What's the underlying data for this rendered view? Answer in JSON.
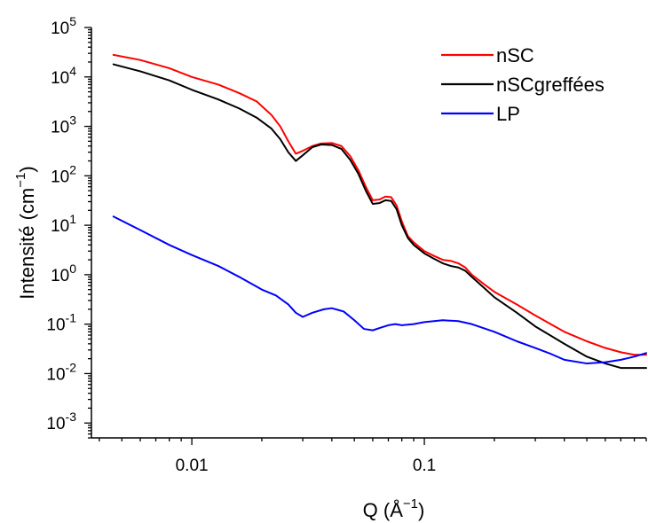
{
  "chart_data": {
    "type": "line",
    "x_scale": "log",
    "y_scale": "log",
    "xlim": [
      0.0037,
      0.9
    ],
    "ylim": [
      0.0005,
      100000
    ],
    "x_ticks": [
      {
        "value": 0.01,
        "label": "0.01"
      },
      {
        "value": 0.1,
        "label": "0.1"
      }
    ],
    "y_ticks": [
      {
        "value": 0.001,
        "base": "10",
        "exp": "-3"
      },
      {
        "value": 0.01,
        "base": "10",
        "exp": "-2"
      },
      {
        "value": 0.1,
        "base": "10",
        "exp": "-1"
      },
      {
        "value": 1,
        "base": "10",
        "exp": "0"
      },
      {
        "value": 10,
        "base": "10",
        "exp": "1"
      },
      {
        "value": 100,
        "base": "10",
        "exp": "2"
      },
      {
        "value": 1000,
        "base": "10",
        "exp": "3"
      },
      {
        "value": 10000,
        "base": "10",
        "exp": "4"
      },
      {
        "value": 100000,
        "base": "10",
        "exp": "5"
      }
    ],
    "xlabel": {
      "main": "Q (Å",
      "sup": "−1",
      "end": ")"
    },
    "ylabel": {
      "main": "Intensité (cm",
      "sup": "−1",
      "end": ")"
    },
    "legend_position": "top-right",
    "series": [
      {
        "name": "nSC",
        "color": "#ff0000",
        "x": [
          0.0046,
          0.006,
          0.008,
          0.01,
          0.013,
          0.016,
          0.019,
          0.022,
          0.024,
          0.026,
          0.028,
          0.03,
          0.033,
          0.036,
          0.04,
          0.044,
          0.048,
          0.052,
          0.056,
          0.06,
          0.064,
          0.068,
          0.072,
          0.076,
          0.08,
          0.085,
          0.09,
          0.1,
          0.11,
          0.12,
          0.13,
          0.14,
          0.15,
          0.16,
          0.18,
          0.2,
          0.25,
          0.3,
          0.4,
          0.5,
          0.6,
          0.7,
          0.8,
          0.9
        ],
        "y": [
          28000,
          22000,
          15000,
          10000,
          7000,
          4700,
          3200,
          1700,
          1000,
          500,
          280,
          320,
          400,
          450,
          460,
          400,
          250,
          130,
          60,
          32,
          33,
          38,
          37,
          25,
          12,
          6,
          4.5,
          3,
          2.4,
          2,
          1.9,
          1.7,
          1.4,
          1.0,
          0.65,
          0.45,
          0.25,
          0.15,
          0.07,
          0.045,
          0.033,
          0.027,
          0.024,
          0.024
        ]
      },
      {
        "name": "nSCgreffées",
        "color": "#000000",
        "x": [
          0.0046,
          0.006,
          0.008,
          0.01,
          0.013,
          0.016,
          0.019,
          0.022,
          0.024,
          0.026,
          0.028,
          0.03,
          0.033,
          0.036,
          0.04,
          0.044,
          0.048,
          0.052,
          0.056,
          0.06,
          0.064,
          0.068,
          0.072,
          0.076,
          0.08,
          0.085,
          0.09,
          0.1,
          0.11,
          0.12,
          0.13,
          0.14,
          0.15,
          0.16,
          0.18,
          0.2,
          0.25,
          0.3,
          0.4,
          0.5,
          0.6,
          0.7,
          0.8,
          0.9
        ],
        "y": [
          18000,
          13000,
          8500,
          5500,
          3500,
          2300,
          1500,
          900,
          550,
          300,
          200,
          260,
          380,
          430,
          420,
          350,
          210,
          110,
          50,
          27,
          28,
          32,
          31,
          21,
          10,
          5.5,
          4,
          2.7,
          2.1,
          1.7,
          1.5,
          1.4,
          1.2,
          0.9,
          0.55,
          0.35,
          0.17,
          0.09,
          0.04,
          0.022,
          0.016,
          0.013,
          0.013,
          0.013
        ]
      },
      {
        "name": "LP",
        "color": "#0000ff",
        "x": [
          0.0046,
          0.006,
          0.008,
          0.01,
          0.013,
          0.016,
          0.02,
          0.023,
          0.026,
          0.028,
          0.03,
          0.033,
          0.037,
          0.04,
          0.045,
          0.05,
          0.055,
          0.06,
          0.065,
          0.07,
          0.075,
          0.08,
          0.09,
          0.1,
          0.12,
          0.14,
          0.16,
          0.2,
          0.25,
          0.3,
          0.35,
          0.4,
          0.5,
          0.6,
          0.7,
          0.8,
          0.9
        ],
        "y": [
          15,
          8,
          4,
          2.5,
          1.5,
          0.9,
          0.5,
          0.38,
          0.25,
          0.17,
          0.14,
          0.17,
          0.2,
          0.21,
          0.18,
          0.12,
          0.08,
          0.075,
          0.085,
          0.095,
          0.1,
          0.095,
          0.1,
          0.11,
          0.12,
          0.115,
          0.1,
          0.07,
          0.045,
          0.033,
          0.025,
          0.019,
          0.016,
          0.017,
          0.019,
          0.022,
          0.026
        ]
      }
    ]
  }
}
